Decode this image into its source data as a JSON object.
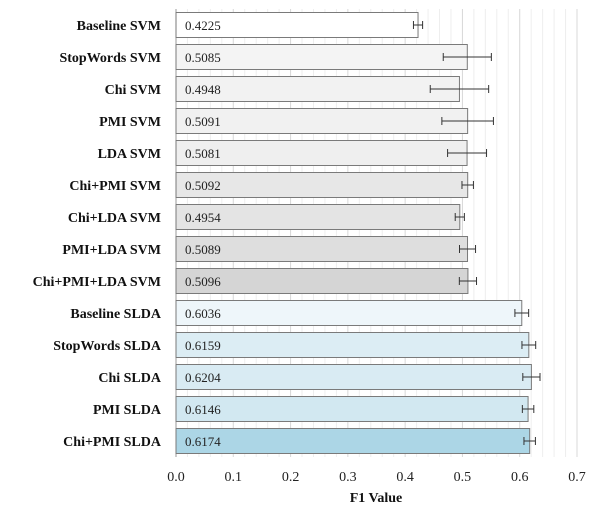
{
  "chart_data": {
    "type": "bar",
    "orientation": "horizontal",
    "title": "",
    "xlabel": "F1 Value",
    "ylabel": "",
    "xlim": [
      0,
      0.7
    ],
    "x_ticks": [
      "0.0",
      "0.1",
      "0.2",
      "0.3",
      "0.4",
      "0.5",
      "0.6",
      "0.7"
    ],
    "grid": "vertical gridlines at 0.02 intervals",
    "legend": "none",
    "categories": [
      "Baseline SVM",
      "StopWords SVM",
      "Chi SVM",
      "PMI SVM",
      "LDA SVM",
      "Chi+PMI SVM",
      "Chi+LDA SVM",
      "PMI+LDA SVM",
      "Chi+PMI+LDA SVM",
      "Baseline SLDA",
      "StopWords SLDA",
      "Chi SLDA",
      "PMI SLDA",
      "Chi+PMI SLDA"
    ],
    "values": [
      0.4225,
      0.5085,
      0.4948,
      0.5091,
      0.5081,
      0.5092,
      0.4954,
      0.5089,
      0.5096,
      0.6036,
      0.6159,
      0.6204,
      0.6146,
      0.6174
    ],
    "value_labels": [
      "0.4225",
      "0.5085",
      "0.4948",
      "0.5091",
      "0.5081",
      "0.5092",
      "0.4954",
      "0.5089",
      "0.5096",
      "0.6036",
      "0.6159",
      "0.6204",
      "0.6146",
      "0.6174"
    ],
    "error": [
      0.008,
      0.042,
      0.051,
      0.045,
      0.034,
      0.01,
      0.008,
      0.014,
      0.015,
      0.012,
      0.012,
      0.015,
      0.01,
      0.01
    ],
    "colors": [
      "#ffffff",
      "#f4f4f4",
      "#f2f2f2",
      "#f1f1f1",
      "#efefef",
      "#e7e7e7",
      "#e4e4e4",
      "#dedede",
      "#d5d5d5",
      "#eef6fa",
      "#dcedf4",
      "#d9ebf3",
      "#d2e8f1",
      "#acd6e6"
    ]
  }
}
